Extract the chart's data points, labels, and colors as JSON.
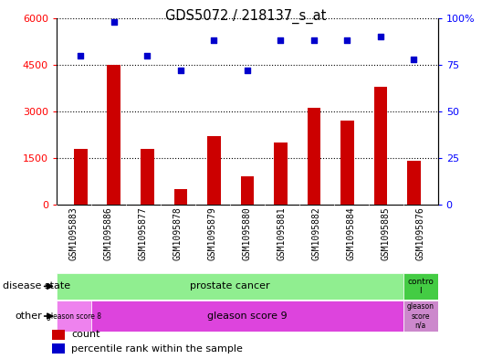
{
  "title": "GDS5072 / 218137_s_at",
  "samples": [
    "GSM1095883",
    "GSM1095886",
    "GSM1095877",
    "GSM1095878",
    "GSM1095879",
    "GSM1095880",
    "GSM1095881",
    "GSM1095882",
    "GSM1095884",
    "GSM1095885",
    "GSM1095876"
  ],
  "counts": [
    1800,
    4500,
    1800,
    500,
    2200,
    900,
    2000,
    3100,
    2700,
    3800,
    1400
  ],
  "percentile_ranks": [
    80,
    98,
    80,
    72,
    88,
    72,
    88,
    88,
    88,
    90,
    78
  ],
  "ylim_left": [
    0,
    6000
  ],
  "ylim_right": [
    0,
    100
  ],
  "yticks_left": [
    0,
    1500,
    3000,
    4500,
    6000
  ],
  "yticks_right": [
    0,
    25,
    50,
    75,
    100
  ],
  "ytick_labels_left": [
    "0",
    "1500",
    "3000",
    "4500",
    "6000"
  ],
  "ytick_labels_right": [
    "0",
    "25",
    "50",
    "75",
    "100%"
  ],
  "bar_color": "#cc0000",
  "dot_color": "#0000cc",
  "plot_bg_color": "#ffffff",
  "fig_bg_color": "#ffffff",
  "grid_color": "#000000",
  "label_disease_state": "disease state",
  "label_other": "other",
  "prostate_color": "#90ee90",
  "control_color": "#44cc44",
  "gleason8_color": "#ee82ee",
  "gleason9_color": "#dd44dd",
  "gleason_na_color": "#cc88cc"
}
